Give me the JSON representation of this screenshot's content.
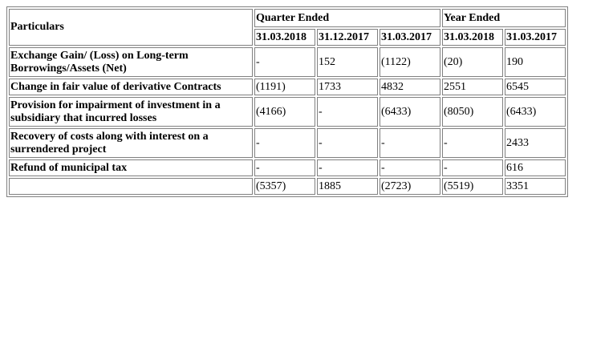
{
  "header": {
    "particulars": "Particulars",
    "quarter_ended": "Quarter Ended",
    "year_ended": "Year Ended",
    "dates": [
      "31.03.2018",
      "31.12.2017",
      "31.03.2017",
      "31.03.2018",
      "31.03.2017"
    ]
  },
  "rows": [
    {
      "label": "Exchange Gain/ (Loss) on Long-term Borrowings/Assets (Net)",
      "values": [
        "-",
        "152",
        "(1122)",
        "(20)",
        "190"
      ]
    },
    {
      "label": "Change in fair value of derivative Contracts",
      "values": [
        "(1191)",
        "1733",
        "4832",
        "2551",
        "6545"
      ]
    },
    {
      "label": "Provision for impairment of investment in a subsidiary that incurred losses",
      "values": [
        "(4166)",
        "-",
        "(6433)",
        "(8050)",
        "(6433)"
      ]
    },
    {
      "label": "Recovery of costs along with interest on a surrendered project",
      "values": [
        "-",
        "-",
        "-",
        "-",
        "2433"
      ]
    },
    {
      "label": "Refund of municipal tax",
      "values": [
        "-",
        "-",
        "-",
        "-",
        "616"
      ]
    }
  ],
  "total": {
    "label": "",
    "values": [
      "(5357)",
      "1885",
      "(2723)",
      "(5519)",
      "3351"
    ]
  }
}
